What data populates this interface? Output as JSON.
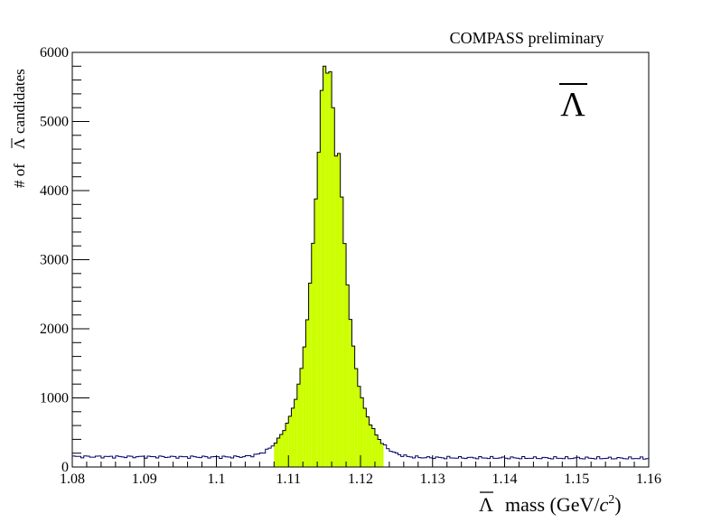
{
  "chart_data": {
    "type": "histogram",
    "title": "COMPASS preliminary",
    "particle_symbol": "Λ",
    "xlabel": "mass (GeV/c²)",
    "xlabel_parts": {
      "symbol": "Λ",
      "text": "mass (GeV/",
      "c": "c",
      "sup": "2",
      "close": ")"
    },
    "ylabel_parts": {
      "prefix": "# of",
      "symbol": "Λ",
      "suffix": "candidates"
    },
    "xlim": [
      1.08,
      1.16
    ],
    "ylim": [
      0,
      6000
    ],
    "x_ticks": [
      1.08,
      1.09,
      1.1,
      1.11,
      1.12,
      1.13,
      1.14,
      1.15,
      1.16
    ],
    "x_tick_labels": [
      "1.08",
      "1.09",
      "1.1",
      "1.11",
      "1.12",
      "1.13",
      "1.14",
      "1.15",
      "1.16"
    ],
    "y_ticks": [
      0,
      1000,
      2000,
      3000,
      4000,
      5000,
      6000
    ],
    "y_tick_labels": [
      "0",
      "1000",
      "2000",
      "3000",
      "4000",
      "5000",
      "6000"
    ],
    "bin_start": 1.08,
    "bin_width": 0.0004,
    "peak_bins": [
      [
        1.1148,
        5800
      ],
      [
        1.1152,
        5700
      ],
      [
        1.1156,
        5720
      ],
      [
        1.116,
        5200
      ],
      [
        1.1164,
        4500
      ],
      [
        1.1144,
        5450
      ]
    ],
    "signal_window": [
      1.108,
      1.1232
    ],
    "colors": {
      "signal_fill": "#ccff00",
      "histogram_line": "#000000",
      "background_line": "#000066"
    },
    "grid": false,
    "legend": "none"
  }
}
